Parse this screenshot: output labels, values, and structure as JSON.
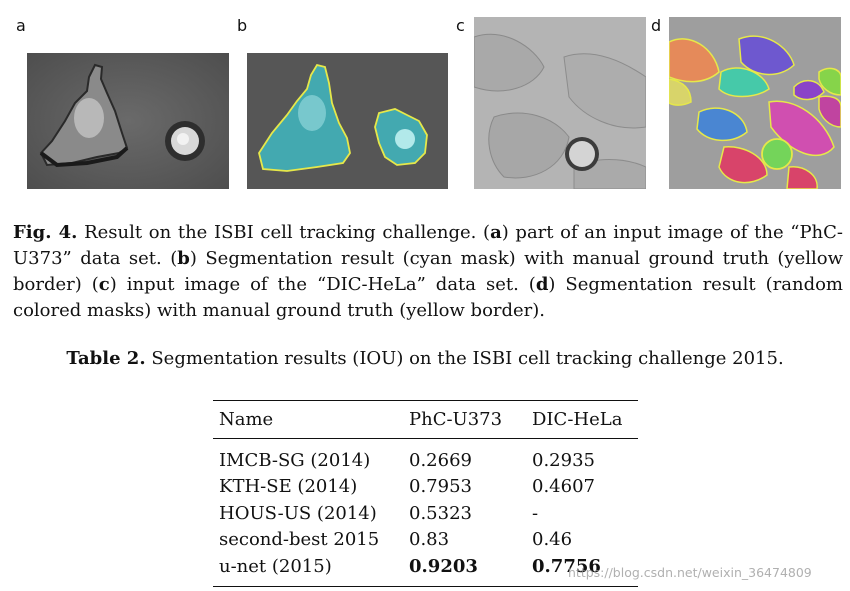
{
  "figure": {
    "panels": [
      {
        "letter": "a"
      },
      {
        "letter": "b"
      },
      {
        "letter": "c"
      },
      {
        "letter": "d"
      }
    ],
    "caption": {
      "label": "Fig. 4.",
      "text_1": " Result on the ISBI cell tracking challenge. (",
      "a": "a",
      "text_2": ") part of an input image of the “PhC-U373” data set. (",
      "b": "b",
      "text_3": ") Segmentation result (cyan mask) with manual ground truth (yellow border) (",
      "c": "c",
      "text_4": ") input image of the “DIC-HeLa” data set. (",
      "d": "d",
      "text_5": ") Segmentation result (random colored masks) with manual ground truth (yellow border)."
    }
  },
  "table": {
    "label": "Table 2.",
    "title": " Segmentation results (IOU) on the ISBI cell tracking challenge 2015.",
    "headers": [
      "Name",
      "PhC-U373",
      "DIC-HeLa"
    ],
    "rows": [
      [
        "IMCB-SG (2014)",
        "0.2669",
        "0.2935"
      ],
      [
        "KTH-SE (2014)",
        "0.7953",
        "0.4607"
      ],
      [
        "HOUS-US (2014)",
        "0.5323",
        "-"
      ],
      [
        "second-best 2015",
        "0.83",
        "0.46"
      ],
      [
        "u-net (2015)",
        "0.9203",
        "0.7756"
      ]
    ]
  },
  "watermark": "https://blog.csdn.net/weixin_36474809",
  "colors": {
    "cyan_mask": "#3fb7bf",
    "yellow_border": "#e6e84a"
  }
}
